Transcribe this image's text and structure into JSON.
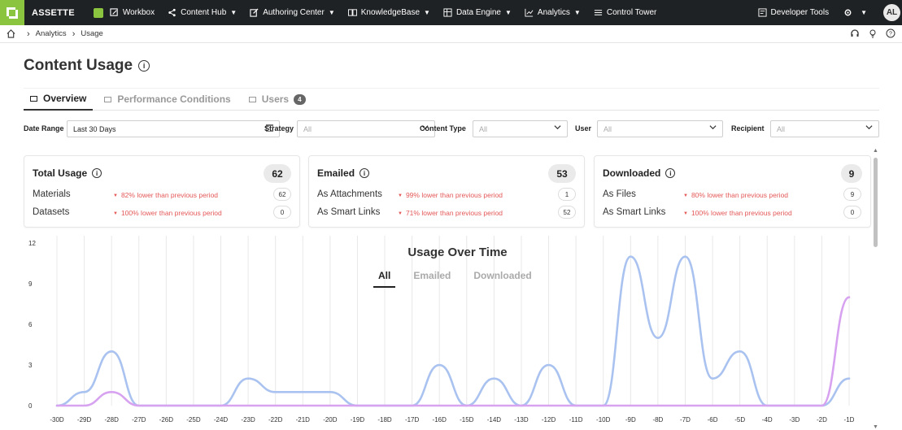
{
  "nav": {
    "brand": "ASSETTE",
    "items": [
      "Workbox",
      "Content Hub",
      "Authoring Center",
      "KnowledgeBase",
      "Data Engine",
      "Analytics",
      "Control Tower"
    ],
    "developer_tools": "Developer Tools",
    "avatar": "AL",
    "accent": "#8bc53f"
  },
  "breadcrumb": {
    "items": [
      "Analytics",
      "Usage"
    ]
  },
  "page": {
    "title": "Content Usage"
  },
  "tabs": [
    {
      "label": "Overview",
      "active": true
    },
    {
      "label": "Performance Conditions"
    },
    {
      "label": "Users",
      "badge": "4"
    }
  ],
  "filters": {
    "date_range_label": "Date Range",
    "date_range_value": "Last 30 Days",
    "strategy_label": "Strategy",
    "strategy_value": "All",
    "content_type_label": "Content Type",
    "content_type_value": "All",
    "user_label": "User",
    "user_value": "All",
    "recipient_label": "Recipient",
    "recipient_value": "All"
  },
  "cards": [
    {
      "title": "Total Usage",
      "total": "62",
      "rows": [
        {
          "label": "Materials",
          "cmp": "82% lower than previous period",
          "num": "62"
        },
        {
          "label": "Datasets",
          "cmp": "100% lower than previous period",
          "num": "0"
        }
      ]
    },
    {
      "title": "Emailed",
      "total": "53",
      "rows": [
        {
          "label": "As Attachments",
          "cmp": "99% lower than previous period",
          "num": "1"
        },
        {
          "label": "As Smart Links",
          "cmp": "71% lower than previous period",
          "num": "52"
        }
      ]
    },
    {
      "title": "Downloaded",
      "total": "9",
      "rows": [
        {
          "label": "As Files",
          "cmp": "80% lower than previous period",
          "num": "9"
        },
        {
          "label": "As Smart Links",
          "cmp": "100% lower than previous period",
          "num": "0"
        }
      ]
    }
  ],
  "chart_tabs": [
    "All",
    "Emailed",
    "Downloaded"
  ],
  "chart_data": {
    "type": "line",
    "title": "Usage Over Time",
    "categories": [
      "-30D",
      "-29D",
      "-28D",
      "-27D",
      "-26D",
      "-25D",
      "-24D",
      "-23D",
      "-22D",
      "-21D",
      "-20D",
      "-19D",
      "-18D",
      "-17D",
      "-16D",
      "-15D",
      "-14D",
      "-13D",
      "-12D",
      "-11D",
      "-10D",
      "-9D",
      "-8D",
      "-7D",
      "-6D",
      "-5D",
      "-4D",
      "-3D",
      "-2D",
      "-1D"
    ],
    "yticks": [
      0,
      3,
      6,
      9,
      12
    ],
    "ylim": [
      0,
      12
    ],
    "grid": true,
    "series": [
      {
        "color": "#a9c2f0",
        "values": [
          0,
          1,
          4,
          0,
          0,
          0,
          0,
          2,
          1,
          1,
          1,
          0,
          0,
          0,
          3,
          0,
          2,
          0,
          3,
          0,
          0,
          11,
          5,
          11,
          2,
          4,
          0,
          0,
          0,
          2
        ]
      },
      {
        "color": "#d7a2f0",
        "values": [
          0,
          0,
          1,
          0,
          0,
          0,
          0,
          0,
          0,
          0,
          0,
          0,
          0,
          0,
          0,
          0,
          0,
          0,
          0,
          0,
          0,
          0,
          0,
          0,
          0,
          0,
          0,
          0,
          0,
          8
        ]
      }
    ]
  }
}
